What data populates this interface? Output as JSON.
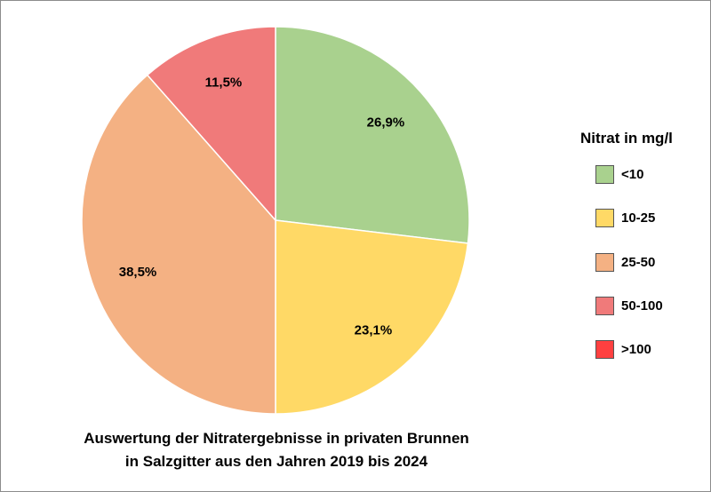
{
  "chart_data": {
    "type": "pie",
    "title_lines": [
      "Auswertung der Nitratergebnisse in privaten Brunnen",
      "in Salzgitter aus den Jahren 2019 bis 2024"
    ],
    "legend_title": "Nitrat in mg/l",
    "legend_position": "right",
    "slices": [
      {
        "category": "<10",
        "value": 26.9,
        "label": "26,9%",
        "color": "#a9d18e"
      },
      {
        "category": "10-25",
        "value": 23.1,
        "label": "23,1%",
        "color": "#ffd966"
      },
      {
        "category": "25-50",
        "value": 38.5,
        "label": "38,5%",
        "color": "#f4b183"
      },
      {
        "category": "50-100",
        "value": 11.5,
        "label": "11,5%",
        "color": "#f07a7a"
      }
    ],
    "legend": [
      {
        "label": "<10",
        "color": "#a9d18e"
      },
      {
        "label": "10-25",
        "color": "#ffd966"
      },
      {
        "label": "25-50",
        "color": "#f4b183"
      },
      {
        "label": "50-100",
        "color": "#f07a7a"
      },
      {
        "label": ">100",
        "color": "#ff4040"
      }
    ]
  }
}
